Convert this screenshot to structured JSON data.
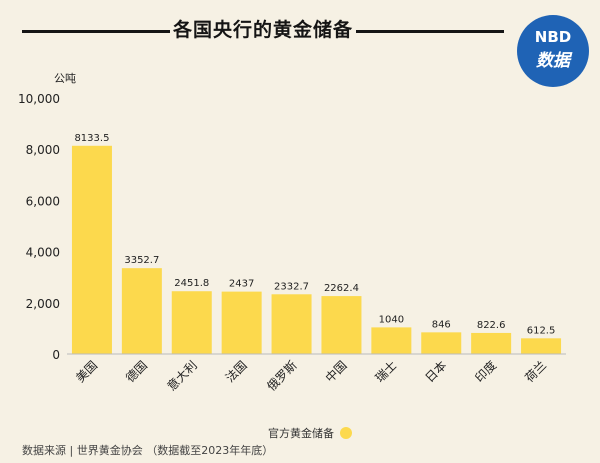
{
  "header": {
    "title": "各国央行的黄金储备",
    "logo_top": "NBD",
    "logo_bottom": "数据"
  },
  "chart_data": {
    "type": "bar",
    "ylabel": "公吨",
    "ylim": [
      0,
      10000
    ],
    "yticks": [
      "0",
      "2,000",
      "4,000",
      "6,000",
      "8,000",
      "10,000"
    ],
    "ytick_values": [
      0,
      2000,
      4000,
      6000,
      8000,
      10000
    ],
    "categories": [
      "美国",
      "德国",
      "意大利",
      "法国",
      "俄罗斯",
      "中国",
      "瑞士",
      "日本",
      "印度",
      "荷兰"
    ],
    "series": [
      {
        "name": "官方黄金储备",
        "values": [
          8133.5,
          3352.7,
          2451.8,
          2437,
          2332.7,
          2262.4,
          1040,
          846,
          822.6,
          612.5
        ],
        "labels": [
          "8133.5",
          "3352.7",
          "2451.8",
          "2437",
          "2332.7",
          "2262.4",
          "1040",
          "846",
          "822.6",
          "612.5"
        ],
        "color": "#fcd94d"
      }
    ],
    "legend": "bottom-center"
  },
  "footer": {
    "source": "数据来源 | 世界黄金协会 （数据截至2023年年底）"
  }
}
